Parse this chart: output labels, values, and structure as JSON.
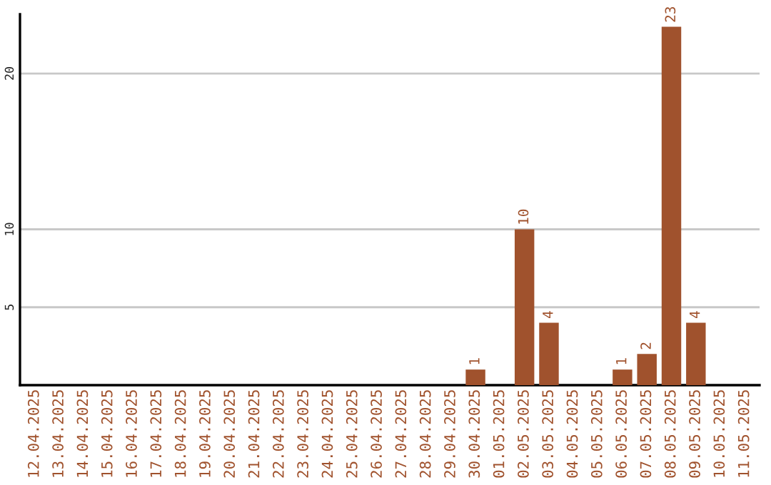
{
  "chart_data": {
    "type": "bar",
    "categories": [
      "12.04.2025",
      "13.04.2025",
      "14.04.2025",
      "15.04.2025",
      "16.04.2025",
      "17.04.2025",
      "18.04.2025",
      "19.04.2025",
      "20.04.2025",
      "21.04.2025",
      "22.04.2025",
      "23.04.2025",
      "24.04.2025",
      "25.04.2025",
      "26.04.2025",
      "27.04.2025",
      "28.04.2025",
      "29.04.2025",
      "30.04.2025",
      "01.05.2025",
      "02.05.2025",
      "03.05.2025",
      "04.05.2025",
      "05.05.2025",
      "06.05.2025",
      "07.05.2025",
      "08.05.2025",
      "09.05.2025",
      "10.05.2025",
      "11.05.2025"
    ],
    "values": [
      0,
      0,
      0,
      0,
      0,
      0,
      0,
      0,
      0,
      0,
      0,
      0,
      0,
      0,
      0,
      0,
      0,
      0,
      1,
      0,
      10,
      4,
      0,
      0,
      1,
      2,
      23,
      4,
      0,
      0
    ],
    "value_labels": [
      null,
      null,
      null,
      null,
      null,
      null,
      null,
      null,
      null,
      null,
      null,
      null,
      null,
      null,
      null,
      null,
      null,
      null,
      "1",
      null,
      "10",
      "4",
      null,
      null,
      "1",
      "2",
      "23",
      "4",
      null,
      null
    ],
    "color": "#a0522d",
    "ylim": [
      0,
      23.8
    ],
    "yticks": [
      5,
      10,
      20
    ],
    "grid": "y",
    "legend": false
  }
}
